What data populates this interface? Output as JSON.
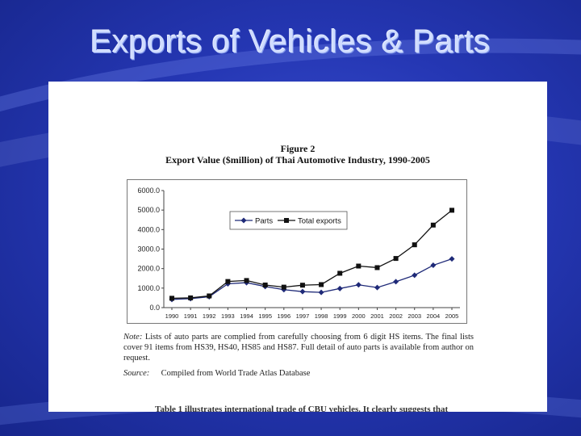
{
  "slide": {
    "title": "Exports of Vehicles & Parts"
  },
  "figure": {
    "number": "Figure 2",
    "title": "Export Value ($million) of Thai Automotive Industry, 1990-2005",
    "note_lead": "Note:",
    "note_text": "Lists of auto parts are complied from carefully choosing from 6 digit HS items. The final lists cover 91 items from HS39, HS40, HS85 and HS87. Full detail of auto parts is available from author on request.",
    "source_lead": "Source:",
    "source_text": "Compiled from World Trade Atlas Database",
    "bottom_text": "Table 1 illustrates international trade of CBU vehicles. It clearly suggests that"
  },
  "chart_data": {
    "type": "line",
    "title": "",
    "xlabel": "",
    "ylabel": "",
    "ylim": [
      0,
      6000
    ],
    "y_ticks": [
      "0.0",
      "1000.0",
      "2000.0",
      "3000.0",
      "4000.0",
      "5000.0",
      "6000.0"
    ],
    "categories": [
      "1990",
      "1991",
      "1992",
      "1993",
      "1994",
      "1995",
      "1996",
      "1997",
      "1998",
      "1999",
      "2000",
      "2001",
      "2002",
      "2003",
      "2004",
      "2005"
    ],
    "grid": false,
    "legend_position": "inside-left",
    "series": [
      {
        "name": "Parts",
        "marker": "diamond",
        "color": "#1f2a78",
        "values": [
          420,
          460,
          560,
          1220,
          1280,
          1080,
          920,
          820,
          780,
          980,
          1170,
          1030,
          1330,
          1660,
          2170,
          2500
        ]
      },
      {
        "name": "Total exports",
        "marker": "square",
        "color": "#111111",
        "values": [
          480,
          500,
          600,
          1340,
          1390,
          1160,
          1050,
          1150,
          1180,
          1760,
          2130,
          2050,
          2520,
          3220,
          4230,
          4990
        ]
      }
    ]
  }
}
